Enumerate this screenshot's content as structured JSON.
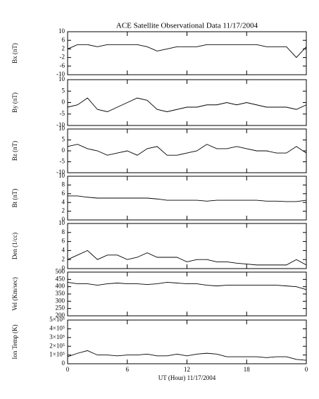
{
  "chart_data": [
    {
      "type": "line",
      "title": "ACE Satellite Observational Data   11/17/2004",
      "y_label": "Bx (nT)",
      "color": "#000000",
      "x": [
        0,
        1,
        2,
        3,
        4,
        5,
        6,
        7,
        8,
        9,
        10,
        11,
        12,
        13,
        14,
        15,
        16,
        17,
        18,
        19,
        20,
        21,
        22,
        23,
        24
      ],
      "values": [
        2,
        4,
        4,
        3,
        4,
        4,
        4,
        4,
        3,
        1,
        2,
        3,
        3,
        3,
        4,
        4,
        4,
        4,
        4,
        4,
        3,
        3,
        3,
        -2,
        3
      ],
      "xlim": [
        0,
        24
      ],
      "xticks": [
        0,
        6,
        12,
        18,
        24
      ],
      "ylim": [
        -10,
        10
      ],
      "yticks": [
        10,
        6,
        2,
        -2,
        -6,
        -10
      ]
    },
    {
      "type": "line",
      "y_label": "By (nT)",
      "color": "#000000",
      "x": [
        0,
        1,
        2,
        3,
        4,
        5,
        6,
        7,
        8,
        9,
        10,
        11,
        12,
        13,
        14,
        15,
        16,
        17,
        18,
        19,
        20,
        21,
        22,
        23,
        24
      ],
      "values": [
        -2,
        -1,
        2,
        -3,
        -4,
        -2,
        0,
        2,
        1,
        -3,
        -4,
        -3,
        -2,
        -2,
        -1,
        -1,
        0,
        -1,
        0,
        -1,
        -2,
        -2,
        -2,
        -3,
        -1
      ],
      "xlim": [
        0,
        24
      ],
      "xticks": [
        0,
        6,
        12,
        18,
        24
      ],
      "ylim": [
        -10,
        10
      ],
      "yticks": [
        10,
        5,
        0,
        -5,
        -10
      ]
    },
    {
      "type": "line",
      "y_label": "Bz (nT)",
      "color": "#000000",
      "x": [
        0,
        1,
        2,
        3,
        4,
        5,
        6,
        7,
        8,
        9,
        10,
        11,
        12,
        13,
        14,
        15,
        16,
        17,
        18,
        19,
        20,
        21,
        22,
        23,
        24
      ],
      "values": [
        2,
        3,
        1,
        0,
        -2,
        -1,
        0,
        -2,
        1,
        2,
        -2,
        -2,
        -1,
        0,
        3,
        1,
        1,
        2,
        1,
        0,
        0,
        -1,
        -1,
        2,
        -1
      ],
      "xlim": [
        0,
        24
      ],
      "xticks": [
        0,
        6,
        12,
        18,
        24
      ],
      "ylim": [
        -10,
        10
      ],
      "yticks": [
        10,
        5,
        0,
        -5,
        -10
      ]
    },
    {
      "type": "line",
      "y_label": "Bt (nT)",
      "color": "#000000",
      "x": [
        0,
        1,
        2,
        3,
        4,
        5,
        6,
        7,
        8,
        9,
        10,
        11,
        12,
        13,
        14,
        15,
        16,
        17,
        18,
        19,
        20,
        21,
        22,
        23,
        24
      ],
      "values": [
        5.5,
        5.5,
        5.2,
        5,
        5,
        5,
        5,
        5,
        5,
        4.8,
        4.5,
        4.5,
        4.5,
        4.5,
        4.3,
        4.5,
        4.5,
        4.5,
        4.5,
        4.5,
        4.3,
        4.3,
        4.2,
        4.2,
        4.5
      ],
      "xlim": [
        0,
        24
      ],
      "xticks": [
        0,
        6,
        12,
        18,
        24
      ],
      "ylim": [
        0,
        10
      ],
      "yticks": [
        10,
        8,
        6,
        4,
        2,
        0
      ]
    },
    {
      "type": "line",
      "y_label": "Den (1/cc)",
      "color": "#000000",
      "x": [
        0,
        1,
        2,
        3,
        4,
        5,
        6,
        7,
        8,
        9,
        10,
        11,
        12,
        13,
        14,
        15,
        16,
        17,
        18,
        19,
        20,
        21,
        22,
        23,
        24
      ],
      "values": [
        2,
        3,
        4,
        2,
        3,
        3,
        2,
        2.5,
        3.5,
        2.5,
        2.5,
        2.5,
        1.5,
        2,
        2,
        1.5,
        1.5,
        1.2,
        1,
        0.8,
        0.8,
        0.8,
        0.8,
        2,
        0.8
      ],
      "xlim": [
        0,
        24
      ],
      "xticks": [
        0,
        6,
        12,
        18,
        24
      ],
      "ylim": [
        0,
        10
      ],
      "yticks": [
        10,
        8,
        6,
        4,
        2,
        0
      ]
    },
    {
      "type": "line",
      "y_label": "Vel (Km/sec)",
      "color": "#000000",
      "x": [
        0,
        1,
        2,
        3,
        4,
        5,
        6,
        7,
        8,
        9,
        10,
        11,
        12,
        13,
        14,
        15,
        16,
        17,
        18,
        19,
        20,
        21,
        22,
        23,
        24
      ],
      "values": [
        430,
        420,
        420,
        410,
        420,
        425,
        420,
        420,
        415,
        420,
        430,
        425,
        420,
        420,
        410,
        405,
        410,
        410,
        410,
        410,
        410,
        410,
        405,
        400,
        380
      ],
      "xlim": [
        0,
        24
      ],
      "xticks": [
        0,
        6,
        12,
        18,
        24
      ],
      "ylim": [
        200,
        500
      ],
      "yticks": [
        500,
        450,
        400,
        350,
        300,
        250,
        200
      ]
    },
    {
      "type": "line",
      "y_label": "Ion Temp (K)",
      "x_label": "UT (Hour)   11/17/2004",
      "color": "#000000",
      "x": [
        0,
        1,
        2,
        3,
        4,
        5,
        6,
        7,
        8,
        9,
        10,
        11,
        12,
        13,
        14,
        15,
        16,
        17,
        18,
        19,
        20,
        21,
        22,
        23,
        24
      ],
      "values": [
        80000,
        120000,
        150000,
        100000,
        100000,
        90000,
        100000,
        100000,
        110000,
        90000,
        90000,
        110000,
        90000,
        110000,
        120000,
        110000,
        80000,
        80000,
        80000,
        80000,
        70000,
        80000,
        80000,
        50000,
        40000
      ],
      "xlim": [
        0,
        24
      ],
      "xticks": [
        0,
        6,
        12,
        18,
        {
          "value": 24,
          "label": "0"
        }
      ],
      "ylim": [
        0,
        500000
      ],
      "yticks": [
        {
          "value": 500000,
          "label": "5×10⁵"
        },
        {
          "value": 400000,
          "label": "4×10⁵"
        },
        {
          "value": 300000,
          "label": "3×10⁵"
        },
        {
          "value": 200000,
          "label": "2×10⁵"
        },
        {
          "value": 100000,
          "label": "1×10⁵"
        },
        0
      ]
    }
  ]
}
